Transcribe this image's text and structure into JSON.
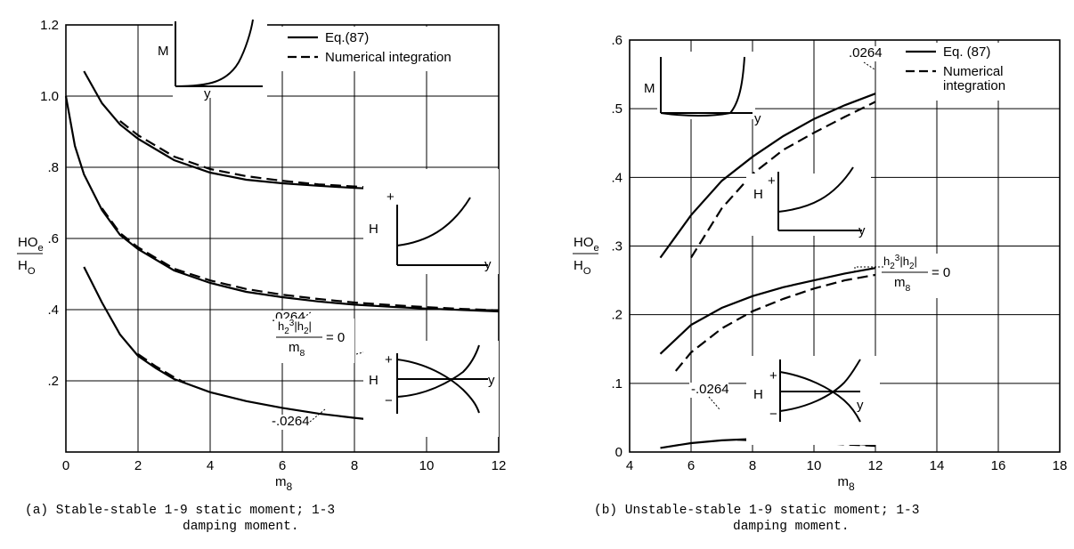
{
  "chart_data": [
    {
      "type": "line",
      "caption_line1": "(a) Stable-stable 1-9 static moment; 1-3",
      "caption_line2": "damping moment.",
      "xlabel": "m8",
      "ylabel_top": "HOe",
      "ylabel_bottom": "HO",
      "xlim": [
        0,
        12
      ],
      "ylim": [
        0,
        1.2
      ],
      "x_ticks": [
        0,
        2,
        4,
        6,
        8,
        10,
        12
      ],
      "x_tick_labels": [
        "0",
        "2",
        "4",
        "6",
        "8",
        "10",
        "12"
      ],
      "y_ticks": [
        0.2,
        0.4,
        0.6,
        0.8,
        1.0,
        1.2
      ],
      "y_tick_labels": [
        ".2",
        ".4",
        ".6",
        ".8",
        "1.0",
        "1.2"
      ],
      "grid": true,
      "legend_position": "top-right",
      "legend": [
        {
          "label": "Eq.(87)",
          "style": "solid"
        },
        {
          "label": "Numerical integration",
          "style": "dashed"
        }
      ],
      "series": [
        {
          "label": ".0264",
          "style": "solid",
          "x": [
            0.5,
            1,
            1.5,
            2,
            2.5,
            3,
            4,
            5,
            6,
            7,
            8,
            9,
            10,
            11,
            12
          ],
          "y": [
            1.07,
            0.98,
            0.92,
            0.88,
            0.85,
            0.82,
            0.785,
            0.765,
            0.755,
            0.748,
            0.742,
            0.738,
            0.735,
            0.732,
            0.73
          ]
        },
        {
          "label": ".0264",
          "style": "dashed",
          "x": [
            1.5,
            2,
            2.5,
            3,
            4,
            5,
            6,
            7,
            8,
            9,
            10,
            11,
            12
          ],
          "y": [
            0.93,
            0.89,
            0.86,
            0.83,
            0.795,
            0.775,
            0.762,
            0.752,
            0.746,
            0.741,
            0.737,
            0.735,
            0.733
          ]
        },
        {
          "label": "h2^3|h2|/m8 = 0",
          "style": "solid",
          "x": [
            0,
            0.25,
            0.5,
            1,
            1.5,
            2,
            3,
            4,
            5,
            6,
            7,
            8,
            9,
            10,
            11,
            12
          ],
          "y": [
            1.0,
            0.86,
            0.78,
            0.68,
            0.61,
            0.57,
            0.51,
            0.475,
            0.45,
            0.435,
            0.423,
            0.414,
            0.408,
            0.403,
            0.399,
            0.395
          ]
        },
        {
          "label": "h2^3|h2|/m8 = 0",
          "style": "dashed",
          "x": [
            1,
            1.5,
            2,
            3,
            4,
            5,
            6,
            7,
            8,
            9,
            10,
            11,
            12
          ],
          "y": [
            0.685,
            0.615,
            0.575,
            0.515,
            0.482,
            0.458,
            0.442,
            0.43,
            0.42,
            0.413,
            0.407,
            0.402,
            0.398
          ]
        },
        {
          "label": "-.0264",
          "style": "solid",
          "x": [
            0.5,
            1,
            1.5,
            2,
            2.5,
            3,
            4,
            5,
            6,
            7,
            8,
            9,
            10,
            11,
            12
          ],
          "y": [
            0.52,
            0.42,
            0.33,
            0.27,
            0.235,
            0.205,
            0.168,
            0.143,
            0.124,
            0.108,
            0.096,
            0.085,
            0.075,
            0.066,
            0.057
          ]
        },
        {
          "label": "-.0264",
          "style": "dashed",
          "x": [
            2,
            2.5,
            3,
            3.3
          ],
          "y": [
            0.275,
            0.24,
            0.21,
            0.195
          ]
        }
      ],
      "annotations": [
        ".0264",
        "h2^3|h2| / m8 = 0",
        "-.0264"
      ],
      "insets": [
        {
          "ylabel": "M",
          "xlabel": "y"
        },
        {
          "ylabel": "H",
          "xlabel": "y",
          "sign_top": "+"
        },
        {
          "ylabel": "H",
          "xlabel": "y",
          "sign_top": "+",
          "sign_bottom": "−"
        }
      ]
    },
    {
      "type": "line",
      "caption_line1": "(b) Unstable-stable 1-9 static moment; 1-3",
      "caption_line2": "damping moment.",
      "xlabel": "m8",
      "ylabel_top": "HOe",
      "ylabel_bottom": "HO",
      "xlim": [
        4,
        18
      ],
      "ylim": [
        0,
        0.6
      ],
      "x_ticks": [
        4,
        6,
        8,
        10,
        12,
        14,
        16,
        18
      ],
      "x_tick_labels": [
        "4",
        "6",
        "8",
        "10",
        "12",
        "14",
        "16",
        "18"
      ],
      "y_ticks": [
        0,
        0.1,
        0.2,
        0.3,
        0.4,
        0.5,
        0.6
      ],
      "y_tick_labels": [
        "0",
        ".1",
        ".2",
        ".3",
        ".4",
        ".5",
        ".6"
      ],
      "grid": true,
      "legend_position": "top-right",
      "legend": [
        {
          "label": "Eq. (87)",
          "style": "solid"
        },
        {
          "label": "Numerical",
          "label2": "integration",
          "style": "dashed"
        }
      ],
      "series": [
        {
          "label": ".0264",
          "style": "solid",
          "x": [
            5,
            6,
            7,
            8,
            9,
            10,
            11,
            12
          ],
          "y": [
            0.283,
            0.345,
            0.395,
            0.43,
            0.46,
            0.485,
            0.505,
            0.522
          ]
        },
        {
          "label": ".0264",
          "style": "dashed",
          "x": [
            6,
            7,
            8,
            9,
            10,
            11,
            12
          ],
          "y": [
            0.283,
            0.355,
            0.405,
            0.44,
            0.465,
            0.488,
            0.51
          ]
        },
        {
          "label": "h2^3|h2|/m8 = 0",
          "style": "solid",
          "x": [
            5,
            6,
            7,
            8,
            9,
            10,
            11,
            12
          ],
          "y": [
            0.143,
            0.185,
            0.21,
            0.227,
            0.24,
            0.25,
            0.26,
            0.268
          ]
        },
        {
          "label": "h2^3|h2|/m8 = 0",
          "style": "dashed",
          "x": [
            5.5,
            6,
            7,
            8,
            9,
            10,
            11,
            12
          ],
          "y": [
            0.118,
            0.145,
            0.18,
            0.205,
            0.223,
            0.238,
            0.25,
            0.258
          ]
        },
        {
          "label": "-.0264",
          "style": "solid",
          "x": [
            5,
            6,
            7,
            8,
            9,
            10,
            11,
            12
          ],
          "y": [
            0.006,
            0.013,
            0.017,
            0.019,
            0.018,
            0.016,
            0.013,
            0.01
          ]
        },
        {
          "label": "-.0264",
          "style": "dashed",
          "x": [
            7.5,
            8,
            9,
            10,
            11,
            12
          ],
          "y": [
            0.018,
            0.017,
            0.016,
            0.014,
            0.011,
            0.009
          ]
        }
      ],
      "annotations": [
        ".0264",
        "h2^3|h2| / m8 = 0",
        "-.0264"
      ],
      "insets": [
        {
          "ylabel": "M",
          "xlabel": "y"
        },
        {
          "ylabel": "H",
          "xlabel": "y",
          "sign_top": "+"
        },
        {
          "ylabel": "H",
          "xlabel": "y",
          "sign_top": "+",
          "sign_bottom": "−"
        }
      ]
    }
  ]
}
